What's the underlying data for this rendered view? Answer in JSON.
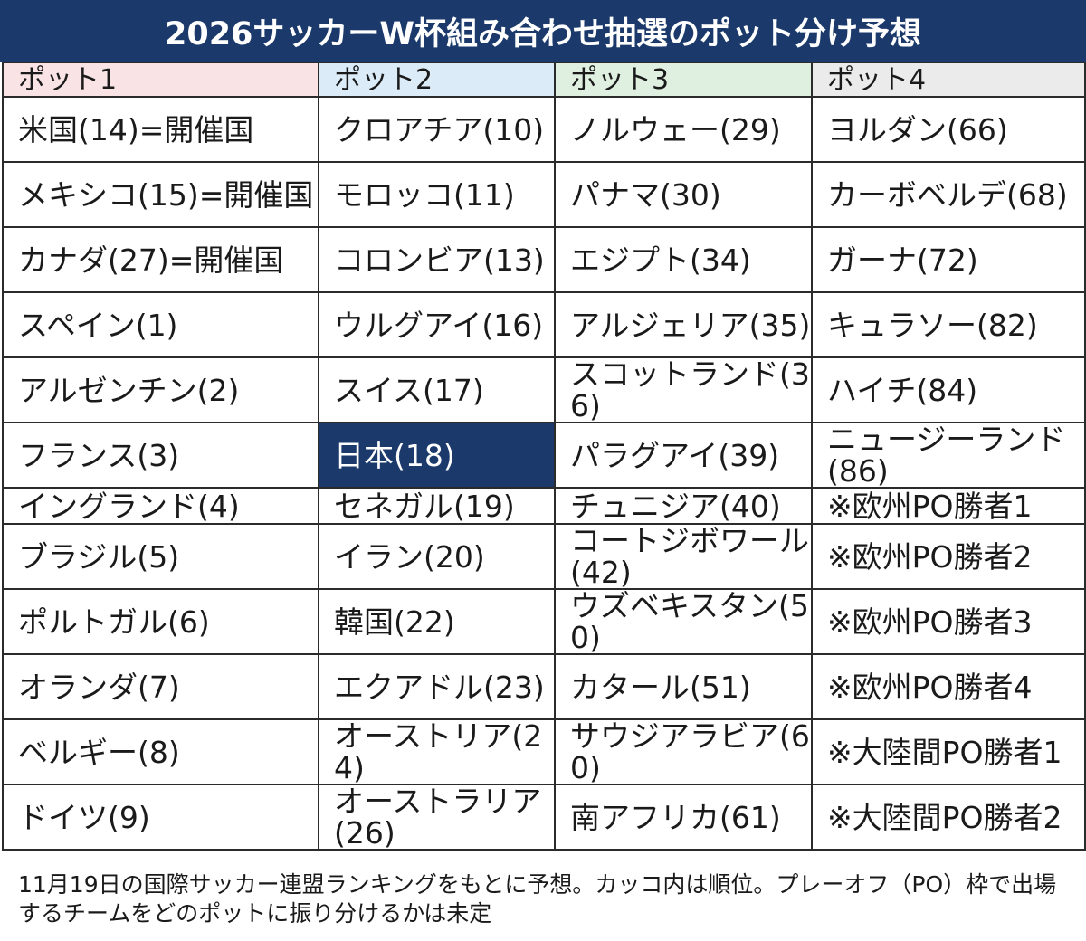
{
  "title": "2026サッカーW杯組み合わせ抽選のポット分け予想",
  "colors": {
    "title_bg": "#1b3a6b",
    "highlight_bg": "#1b3a6b",
    "pot1_bg": "#f9e3e5",
    "pot2_bg": "#dcebf8",
    "pot3_bg": "#dff0e1",
    "pot4_bg": "#ebebeb"
  },
  "headers": [
    "ポット1",
    "ポット2",
    "ポット3",
    "ポット4"
  ],
  "rows": [
    [
      "米国(14)=開催国",
      "クロアチア(10)",
      "ノルウェー(29)",
      "ヨルダン(66)"
    ],
    [
      "メキシコ(15)=開催国",
      "モロッコ(11)",
      "パナマ(30)",
      "カーボベルデ(68)"
    ],
    [
      "カナダ(27)=開催国",
      "コロンビア(13)",
      "エジプト(34)",
      "ガーナ(72)"
    ],
    [
      "スペイン(1)",
      "ウルグアイ(16)",
      "アルジェリア(35)",
      "キュラソー(82)"
    ],
    [
      "アルゼンチン(2)",
      "スイス(17)",
      "スコットランド(36)",
      "ハイチ(84)"
    ],
    [
      "フランス(3)",
      "日本(18)",
      "パラグアイ(39)",
      "ニュージーランド(86)"
    ],
    [
      "イングランド(4)",
      "セネガル(19)",
      "チュニジア(40)",
      "※欧州PO勝者1"
    ],
    [
      "ブラジル(5)",
      "イラン(20)",
      "コートジボワール(42)",
      "※欧州PO勝者2"
    ],
    [
      "ポルトガル(6)",
      "韓国(22)",
      "ウズベキスタン(50)",
      "※欧州PO勝者3"
    ],
    [
      "オランダ(7)",
      "エクアドル(23)",
      "カタール(51)",
      "※欧州PO勝者4"
    ],
    [
      "ベルギー(8)",
      "オーストリア(24)",
      "サウジアラビア(60)",
      "※大陸間PO勝者1"
    ],
    [
      "ドイツ(9)",
      "オーストラリア(26)",
      "南アフリカ(61)",
      "※大陸間PO勝者2"
    ]
  ],
  "footnote": "11月19日の国際サッカー連盟ランキングをもとに予想。カッコ内は順位。プレーオフ（PO）枠で出場するチームをどのポットに振り分けるかは未定"
}
